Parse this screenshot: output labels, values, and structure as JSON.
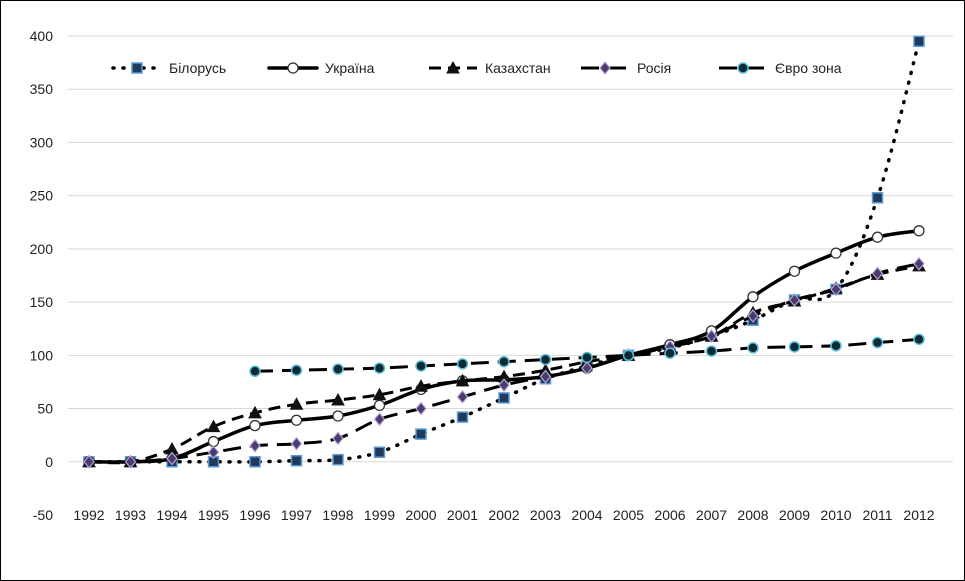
{
  "chart_data": {
    "type": "line",
    "title": "",
    "xlabel": "",
    "ylabel": "",
    "x": [
      "1992",
      "1993",
      "1994",
      "1995",
      "1996",
      "1997",
      "1998",
      "1999",
      "2000",
      "2001",
      "2002",
      "2003",
      "2004",
      "2005",
      "2006",
      "2007",
      "2008",
      "2009",
      "2010",
      "2011",
      "2012"
    ],
    "ylim": [
      -50,
      400
    ],
    "yticks": [
      400,
      350,
      300,
      250,
      200,
      150,
      100,
      50,
      0,
      -50
    ],
    "grid": "horizontal",
    "legend_position": "top",
    "series": [
      {
        "name": "Білорусь",
        "style": "dotted",
        "marker": "square",
        "marker_fill": "#1f3a5a",
        "marker_stroke": "#5b9bd5",
        "values": [
          0,
          0,
          0,
          0,
          0,
          1,
          2,
          9,
          26,
          42,
          60,
          78,
          90,
          100,
          107,
          118,
          133,
          152,
          162,
          248,
          395
        ]
      },
      {
        "name": "Україна",
        "style": "solid",
        "marker": "circle-open",
        "marker_fill": "#ffffff",
        "marker_stroke": "#333333",
        "values": [
          0,
          0,
          3,
          19,
          34,
          39,
          43,
          53,
          68,
          76,
          77,
          80,
          88,
          100,
          110,
          123,
          155,
          179,
          196,
          211,
          217
        ]
      },
      {
        "name": "Казахстан",
        "style": "dashed",
        "marker": "triangle",
        "marker_fill": "#111111",
        "marker_stroke": "#111111",
        "values": [
          0,
          0,
          12,
          33,
          46,
          54,
          58,
          63,
          71,
          76,
          80,
          86,
          94,
          100,
          108,
          118,
          140,
          151,
          163,
          176,
          184
        ]
      },
      {
        "name": "Росія",
        "style": "longdash",
        "marker": "diamond",
        "marker_fill": "#4b3b6e",
        "marker_stroke": "#b8a6d9",
        "values": [
          0,
          0,
          3,
          9,
          15,
          17,
          22,
          40,
          50,
          61,
          72,
          80,
          88,
          100,
          108,
          118,
          137,
          152,
          162,
          177,
          186
        ]
      },
      {
        "name": "Євро зона",
        "style": "longdash",
        "marker": "circle",
        "marker_fill": "#0f2a33",
        "marker_stroke": "#5bc0de",
        "start_index": 4,
        "values": [
          null,
          null,
          null,
          null,
          85,
          86,
          87,
          88,
          90,
          92,
          94,
          96,
          98,
          100,
          102,
          104,
          107,
          108,
          109,
          112,
          115
        ]
      }
    ]
  }
}
